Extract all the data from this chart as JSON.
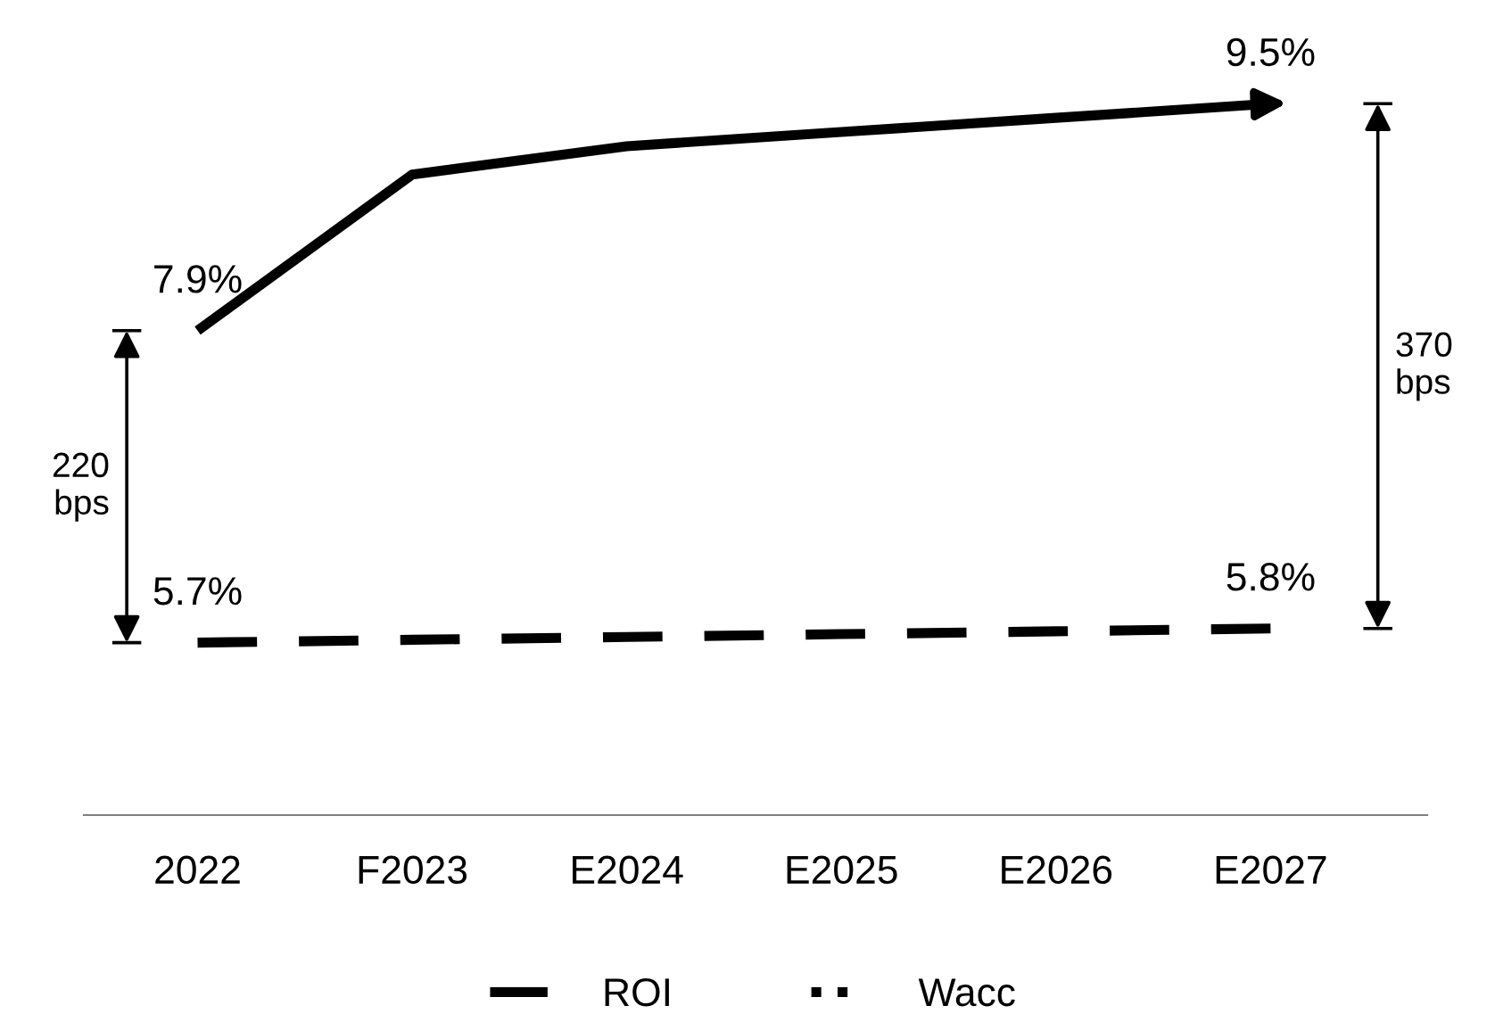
{
  "chart_data": {
    "type": "line",
    "categories": [
      "2022",
      "F2023",
      "E2024",
      "E2025",
      "E2026",
      "E2027"
    ],
    "series": [
      {
        "name": "ROI",
        "color": "#000000",
        "line_style": "solid",
        "values": [
          7.9,
          9.0,
          9.2,
          9.3,
          9.4,
          9.5
        ],
        "value_labels": [
          "7.9%",
          null,
          null,
          null,
          null,
          "9.5%"
        ]
      },
      {
        "name": "Wacc",
        "color": "#000000",
        "line_style": "dashed",
        "values": [
          5.7,
          5.72,
          5.74,
          5.76,
          5.78,
          5.8
        ],
        "value_labels": [
          "5.7%",
          null,
          null,
          null,
          null,
          "5.8%"
        ]
      }
    ],
    "annotations": [
      "220\nbps",
      "370\nbps"
    ],
    "legend": "bottom",
    "grid": false,
    "marker": "none"
  }
}
